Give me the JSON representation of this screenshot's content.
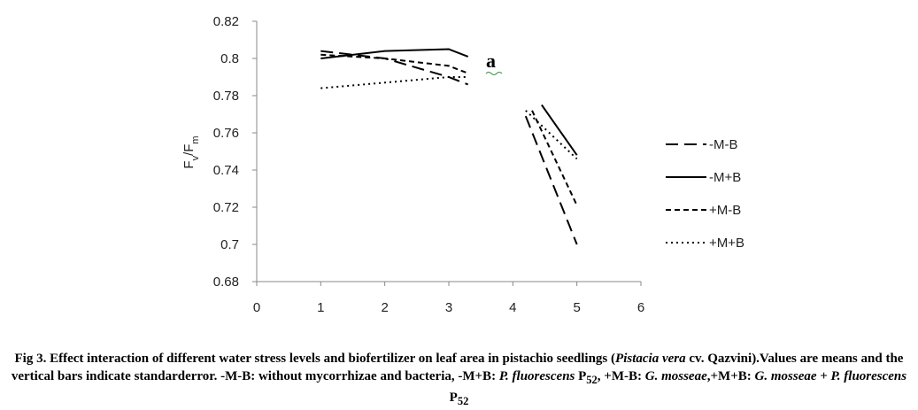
{
  "chart_data": {
    "type": "line",
    "panel_label": "a",
    "ylabel": "Fv/Fm",
    "ylabel_parts": {
      "main": "F",
      "sub1": "v",
      "slash": "/F",
      "sub2": "m"
    },
    "xlim": [
      0,
      6
    ],
    "ylim": [
      0.68,
      0.82
    ],
    "x_ticks": [
      "0",
      "1",
      "2",
      "3",
      "4",
      "5",
      "6"
    ],
    "y_ticks": [
      "0.68",
      "0.7",
      "0.72",
      "0.74",
      "0.76",
      "0.78",
      "0.8",
      "0.82"
    ],
    "grid": false,
    "legend_position": "right",
    "series": [
      {
        "name": "-M-B",
        "dash": "long-dash",
        "segments": [
          [
            [
              1,
              0.804
            ],
            [
              2,
              0.8
            ],
            [
              3,
              0.79
            ],
            [
              3.3,
              0.786
            ]
          ],
          [
            [
              4.2,
              0.769
            ],
            [
              5,
              0.7
            ]
          ]
        ]
      },
      {
        "name": "-M+B",
        "dash": "solid",
        "segments": [
          [
            [
              1,
              0.8
            ],
            [
              2,
              0.804
            ],
            [
              3,
              0.805
            ],
            [
              3.3,
              0.801
            ]
          ],
          [
            [
              4.45,
              0.775
            ],
            [
              5,
              0.748
            ]
          ]
        ]
      },
      {
        "name": "+M-B",
        "dash": "short-dash",
        "segments": [
          [
            [
              1,
              0.802
            ],
            [
              2,
              0.8
            ],
            [
              3,
              0.796
            ],
            [
              3.3,
              0.792
            ]
          ],
          [
            [
              4.3,
              0.772
            ],
            [
              5,
              0.721
            ]
          ]
        ]
      },
      {
        "name": "+M+B",
        "dash": "dotted",
        "segments": [
          [
            [
              1,
              0.784
            ],
            [
              2,
              0.787
            ],
            [
              3,
              0.79
            ],
            [
              3.3,
              0.79
            ]
          ],
          [
            [
              4.2,
              0.772
            ],
            [
              5,
              0.746
            ]
          ]
        ]
      }
    ]
  },
  "caption": {
    "p1": "Fig 3. Effect interaction of different water stress levels and biofertilizer on leaf area in pistachio seedlings (",
    "p2": "Pistacia vera",
    "p3": " cv. Qazvini).Values are means and the vertical bars indicate standarderror. -M-B: without mycorrhizae and bacteria, -M+B: ",
    "p4": "P. fluorescens",
    "p5": " P",
    "p6": "52",
    "p7": ", +M-B: ",
    "p8": "G. mosseae",
    "p9": ",+M+B: ",
    "p10": "G. mosseae + P. fluorescens",
    "p11": " P",
    "p12": "52"
  },
  "colors": {
    "line": "#000000",
    "axis": "#888888",
    "text": "#222222"
  }
}
